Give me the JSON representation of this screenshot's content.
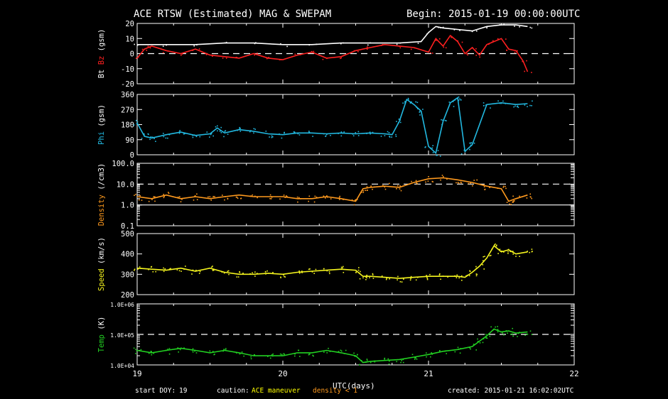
{
  "header": {
    "title": "ACE RTSW (Estimated) MAG & SWEPAM",
    "begin": "Begin: 2015-01-19 00:00:00UTC"
  },
  "footer": {
    "start_doy_label": "start DOY:",
    "start_doy": "19",
    "caution_label": "caution:",
    "caution_maneuver": "ACE maneuver",
    "caution_density": "density < 1",
    "created": "created: 2015-01-21 16:02:02UTC",
    "xlabel": "UTC(days)"
  },
  "colors": {
    "bt": "#ffffff",
    "bz": "#ff2020",
    "phi": "#22b8e0",
    "density": "#ff9a1e",
    "speed": "#f5f51e",
    "temp": "#22d022",
    "frame": "#ffffff",
    "caution_maneuver": "#ffff00",
    "caution_density": "#ff9a1e"
  },
  "chart_data": [
    {
      "type": "line",
      "panel": "mag",
      "ylabel_parts": [
        "Bt",
        "Bz",
        "(gsm)"
      ],
      "ylim": [
        -20,
        20
      ],
      "yticks": [
        20,
        10,
        0,
        -10,
        -20
      ],
      "reference_lines": [
        0
      ],
      "x_unit": "UTC day",
      "xlim": [
        19,
        22
      ],
      "series": [
        {
          "name": "Bt",
          "x": [
            19.0,
            19.2,
            19.4,
            19.6,
            19.8,
            20.0,
            20.2,
            20.4,
            20.6,
            20.8,
            20.95,
            21.0,
            21.05,
            21.1,
            21.2,
            21.3,
            21.4,
            21.5,
            21.6,
            21.68
          ],
          "values": [
            6,
            6,
            6,
            7,
            7,
            6,
            6,
            7,
            7,
            7,
            8,
            14,
            18,
            17,
            16,
            15,
            18,
            19,
            19,
            18
          ]
        },
        {
          "name": "Bz",
          "x": [
            19.0,
            19.05,
            19.1,
            19.2,
            19.3,
            19.4,
            19.5,
            19.6,
            19.7,
            19.8,
            19.9,
            20.0,
            20.1,
            20.2,
            20.3,
            20.4,
            20.5,
            20.6,
            20.7,
            20.8,
            20.9,
            21.0,
            21.05,
            21.1,
            21.15,
            21.2,
            21.25,
            21.3,
            21.35,
            21.4,
            21.45,
            21.5,
            21.55,
            21.6,
            21.65,
            21.68
          ],
          "values": [
            -3,
            3,
            5,
            2,
            0,
            3,
            -1,
            -2,
            -3,
            0,
            -3,
            -4,
            -1,
            1,
            -3,
            -2,
            2,
            4,
            6,
            5,
            4,
            1,
            10,
            5,
            12,
            8,
            0,
            4,
            -1,
            6,
            8,
            10,
            3,
            2,
            -5,
            -12
          ]
        }
      ]
    },
    {
      "type": "scatter",
      "panel": "phi",
      "ylabel_parts": [
        "Phi",
        "(gsm)"
      ],
      "ylim": [
        0,
        360
      ],
      "yticks": [
        360,
        270,
        180,
        90,
        0
      ],
      "x_unit": "UTC day",
      "xlim": [
        19,
        22
      ],
      "series": [
        {
          "name": "Phi",
          "x": [
            19.0,
            19.05,
            19.1,
            19.2,
            19.3,
            19.4,
            19.5,
            19.55,
            19.6,
            19.7,
            19.8,
            19.9,
            20.0,
            20.1,
            20.2,
            20.3,
            20.4,
            20.5,
            20.6,
            20.7,
            20.75,
            20.8,
            20.85,
            20.9,
            20.95,
            21.0,
            21.05,
            21.1,
            21.15,
            21.2,
            21.25,
            21.3,
            21.4,
            21.5,
            21.6,
            21.68
          ],
          "values": [
            190,
            110,
            100,
            120,
            135,
            115,
            125,
            160,
            130,
            150,
            140,
            125,
            120,
            130,
            130,
            125,
            130,
            125,
            130,
            125,
            120,
            200,
            330,
            300,
            260,
            50,
            10,
            200,
            310,
            340,
            20,
            60,
            300,
            310,
            300,
            305
          ]
        }
      ]
    },
    {
      "type": "scatter",
      "panel": "density",
      "ylabel_parts": [
        "Density",
        "(/cm3)"
      ],
      "yscale": "log",
      "ylim": [
        0.1,
        100.0
      ],
      "yticks": [
        "100.0",
        "10.0",
        "1.0",
        "0.1"
      ],
      "reference_lines": [
        10,
        1
      ],
      "x_unit": "UTC day",
      "xlim": [
        19,
        22
      ],
      "series": [
        {
          "name": "Density",
          "x": [
            19.0,
            19.1,
            19.2,
            19.3,
            19.4,
            19.5,
            19.6,
            19.7,
            19.8,
            19.9,
            20.0,
            20.1,
            20.2,
            20.3,
            20.4,
            20.5,
            20.55,
            20.6,
            20.7,
            20.8,
            20.9,
            21.0,
            21.1,
            21.2,
            21.3,
            21.4,
            21.5,
            21.55,
            21.6,
            21.68
          ],
          "values": [
            2.5,
            2,
            3,
            2,
            2.5,
            2,
            2.5,
            3,
            2.5,
            2.5,
            2.5,
            2,
            2,
            2.5,
            2,
            1.5,
            6,
            7,
            8,
            7,
            12,
            18,
            20,
            16,
            12,
            8,
            6,
            1.5,
            2,
            3
          ]
        }
      ]
    },
    {
      "type": "scatter",
      "panel": "speed",
      "ylabel_parts": [
        "Speed",
        "(km/s)"
      ],
      "ylim": [
        200,
        500
      ],
      "yticks": [
        500,
        400,
        300,
        200
      ],
      "x_unit": "UTC day",
      "xlim": [
        19,
        22
      ],
      "series": [
        {
          "name": "Speed",
          "x": [
            19.0,
            19.1,
            19.2,
            19.3,
            19.4,
            19.5,
            19.6,
            19.7,
            19.8,
            19.9,
            20.0,
            20.1,
            20.2,
            20.3,
            20.4,
            20.5,
            20.55,
            20.6,
            20.7,
            20.8,
            20.9,
            21.0,
            21.1,
            21.2,
            21.25,
            21.3,
            21.35,
            21.4,
            21.45,
            21.5,
            21.55,
            21.6,
            21.68
          ],
          "values": [
            330,
            325,
            320,
            330,
            315,
            330,
            310,
            300,
            300,
            305,
            300,
            310,
            315,
            320,
            325,
            320,
            290,
            290,
            285,
            280,
            285,
            290,
            290,
            290,
            285,
            310,
            340,
            380,
            440,
            410,
            420,
            400,
            410
          ]
        }
      ]
    },
    {
      "type": "scatter",
      "panel": "temp",
      "ylabel_parts": [
        "Temp",
        "(K)"
      ],
      "yscale": "log",
      "ylim": [
        10000,
        1000000
      ],
      "yticks": [
        "1.0E+06",
        "1.0E+05",
        "1.0E+04"
      ],
      "reference_lines": [
        100000
      ],
      "x_unit": "UTC day",
      "xlim": [
        19,
        22
      ],
      "xticks": [
        19,
        20,
        21,
        22
      ],
      "xlabel": "UTC(days)",
      "series": [
        {
          "name": "Temp",
          "x": [
            19.0,
            19.1,
            19.2,
            19.3,
            19.4,
            19.5,
            19.6,
            19.7,
            19.8,
            19.9,
            20.0,
            20.1,
            20.2,
            20.3,
            20.4,
            20.5,
            20.55,
            20.6,
            20.7,
            20.8,
            20.9,
            21.0,
            21.1,
            21.2,
            21.3,
            21.35,
            21.4,
            21.45,
            21.5,
            21.55,
            21.6,
            21.68
          ],
          "values": [
            30000,
            25000,
            30000,
            35000,
            30000,
            25000,
            30000,
            25000,
            20000,
            20000,
            20000,
            25000,
            25000,
            30000,
            25000,
            20000,
            12000,
            13000,
            14000,
            15000,
            18000,
            22000,
            28000,
            32000,
            40000,
            60000,
            90000,
            150000,
            120000,
            130000,
            110000,
            120000
          ]
        }
      ]
    }
  ]
}
